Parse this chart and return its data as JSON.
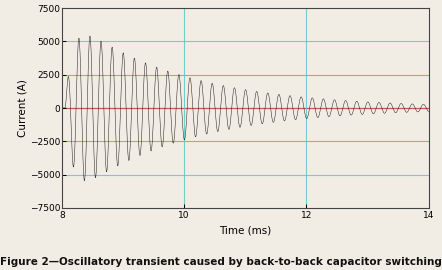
{
  "title": "Figure 2—Oscillatory transient caused by back-to-back capacitor switching",
  "xlabel": "Time (ms)",
  "ylabel": "Current (A)",
  "xlim": [
    8,
    14
  ],
  "ylim": [
    -7500,
    7500
  ],
  "yticks": [
    -7500,
    -5000,
    -2500,
    0,
    2500,
    5000,
    7500
  ],
  "xticks": [
    8,
    10,
    12,
    14
  ],
  "hline_orange": "#d4950a",
  "hline_orange_vals": [
    2500,
    -2500
  ],
  "hline_cyan": "#5cc8c8",
  "hline_cyan_vals": [
    5000,
    -5000
  ],
  "hline_red_val": 0,
  "hline_red": "#cc4444",
  "vline_color": "#5cc8c8",
  "vline_values": [
    10,
    12
  ],
  "vline_dotted_val": 8,
  "signal_color": "#111111",
  "background_color": "#f2ede4",
  "t_start": 8.0,
  "t_end": 14.0,
  "osc_freq_per_ms": 5.5,
  "decay_rate_per_ms": 0.55,
  "initial_amplitude": 7000,
  "switch_time": 8.05,
  "rise_time": 0.12,
  "figsize": [
    4.42,
    2.7
  ],
  "dpi": 100
}
